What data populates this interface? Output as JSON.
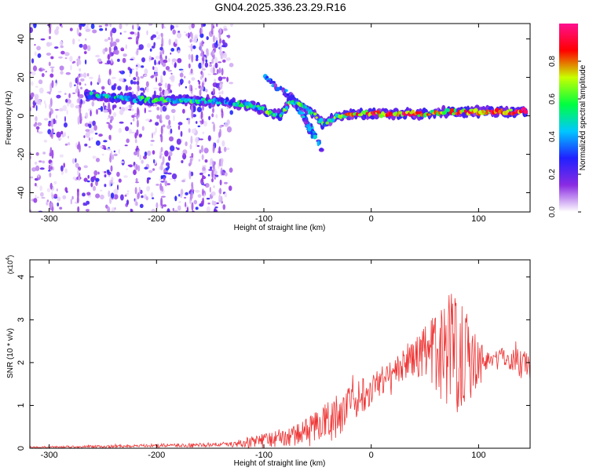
{
  "figure_title": "GN04.2025.336.23.29.R16",
  "chart_data": [
    {
      "type": "heatmap",
      "title": "GN04.2025.336.23.29.R16",
      "xlabel": "Height of straight line (km)",
      "ylabel": "Frequency (Hz)",
      "xlim": [
        -318,
        148
      ],
      "ylim": [
        -50,
        48
      ],
      "x_ticks": [
        -300,
        -200,
        -100,
        0,
        100
      ],
      "y_ticks": [
        -40,
        -20,
        0,
        20,
        40
      ],
      "colorbar": {
        "label": "Normalized spectral amplitude",
        "range": [
          0,
          1
        ],
        "ticks": [
          "0.0",
          "0.2",
          "0.4",
          "0.6",
          "0.8"
        ],
        "colormap": [
          "#ffffff",
          "#8a2be2",
          "#2020ff",
          "#00c8ff",
          "#00ff40",
          "#c8ff00",
          "#ff0000",
          "#ff1090"
        ]
      },
      "noise_region": {
        "x_range": [
          -318,
          -130
        ],
        "amplitude": [
          0.02,
          0.3
        ]
      },
      "ridge": [
        {
          "x": -265,
          "f": 11,
          "a": 0.35
        },
        {
          "x": -250,
          "f": 10,
          "a": 0.4
        },
        {
          "x": -230,
          "f": 9,
          "a": 0.4
        },
        {
          "x": -210,
          "f": 8.5,
          "a": 0.45
        },
        {
          "x": -190,
          "f": 8,
          "a": 0.5
        },
        {
          "x": -170,
          "f": 8,
          "a": 0.45
        },
        {
          "x": -150,
          "f": 8,
          "a": 0.4
        },
        {
          "x": -130,
          "f": 7,
          "a": 0.4
        },
        {
          "x": -110,
          "f": 5,
          "a": 0.5
        },
        {
          "x": -95,
          "f": 2,
          "a": 0.5
        },
        {
          "x": -85,
          "f": 0,
          "a": 0.45
        },
        {
          "x": -75,
          "f": 8,
          "a": 0.55
        },
        {
          "x": -65,
          "f": 5,
          "a": 0.55
        },
        {
          "x": -55,
          "f": 2,
          "a": 0.5
        },
        {
          "x": -45,
          "f": -4,
          "a": 0.5
        },
        {
          "x": -30,
          "f": 0,
          "a": 0.55
        },
        {
          "x": -20,
          "f": 1,
          "a": 0.7
        },
        {
          "x": -5,
          "f": 1,
          "a": 0.8
        },
        {
          "x": 10,
          "f": 1,
          "a": 0.8
        },
        {
          "x": 30,
          "f": 1,
          "a": 0.8
        },
        {
          "x": 50,
          "f": 1,
          "a": 0.7
        },
        {
          "x": 70,
          "f": 2,
          "a": 0.7
        },
        {
          "x": 90,
          "f": 2,
          "a": 0.75
        },
        {
          "x": 110,
          "f": 2,
          "a": 0.85
        },
        {
          "x": 130,
          "f": 2,
          "a": 0.85
        },
        {
          "x": 145,
          "f": 3,
          "a": 0.8
        }
      ],
      "branches": [
        [
          {
            "x": -100,
            "f": 20
          },
          {
            "x": -80,
            "f": 12
          },
          {
            "x": -65,
            "f": 5
          },
          {
            "x": -55,
            "f": -8
          },
          {
            "x": -45,
            "f": -18
          }
        ],
        [
          {
            "x": -75,
            "f": 10
          },
          {
            "x": -65,
            "f": 2
          },
          {
            "x": -55,
            "f": -10
          }
        ]
      ]
    },
    {
      "type": "line",
      "xlabel": "Height of straight line (km)",
      "ylabel": "SNR (10 * v/v)",
      "y_scale_label": "(x10",
      "y_scale_exponent": "4",
      "xlim": [
        -318,
        148
      ],
      "ylim": [
        0,
        4.4
      ],
      "x_ticks": [
        -300,
        -200,
        -100,
        0,
        100
      ],
      "y_ticks": [
        0,
        1,
        2,
        3,
        4
      ],
      "color": "#ee3333",
      "envelope": [
        {
          "x": -318,
          "mean": 0.02,
          "spread": 0.02
        },
        {
          "x": -250,
          "mean": 0.04,
          "spread": 0.03
        },
        {
          "x": -200,
          "mean": 0.06,
          "spread": 0.04
        },
        {
          "x": -150,
          "mean": 0.08,
          "spread": 0.05
        },
        {
          "x": -130,
          "mean": 0.1,
          "spread": 0.05
        },
        {
          "x": -110,
          "mean": 0.15,
          "spread": 0.15
        },
        {
          "x": -90,
          "mean": 0.22,
          "spread": 0.2
        },
        {
          "x": -70,
          "mean": 0.3,
          "spread": 0.25
        },
        {
          "x": -50,
          "mean": 0.55,
          "spread": 0.35
        },
        {
          "x": -35,
          "mean": 0.7,
          "spread": 0.55
        },
        {
          "x": -20,
          "mean": 1.0,
          "spread": 0.45
        },
        {
          "x": -5,
          "mean": 1.35,
          "spread": 0.45
        },
        {
          "x": 10,
          "mean": 1.6,
          "spread": 0.35
        },
        {
          "x": 25,
          "mean": 1.85,
          "spread": 0.35
        },
        {
          "x": 40,
          "mean": 2.1,
          "spread": 0.4
        },
        {
          "x": 55,
          "mean": 2.2,
          "spread": 0.85
        },
        {
          "x": 70,
          "mean": 2.3,
          "spread": 1.3
        },
        {
          "x": 80,
          "mean": 2.4,
          "spread": 1.6
        },
        {
          "x": 90,
          "mean": 2.2,
          "spread": 1.2
        },
        {
          "x": 100,
          "mean": 2.0,
          "spread": 0.6
        },
        {
          "x": 110,
          "mean": 2.1,
          "spread": 0.2
        },
        {
          "x": 120,
          "mean": 2.15,
          "spread": 0.2
        },
        {
          "x": 130,
          "mean": 2.1,
          "spread": 0.3
        },
        {
          "x": 140,
          "mean": 2.0,
          "spread": 0.35
        },
        {
          "x": 148,
          "mean": 2.05,
          "spread": 0.3
        }
      ]
    }
  ]
}
